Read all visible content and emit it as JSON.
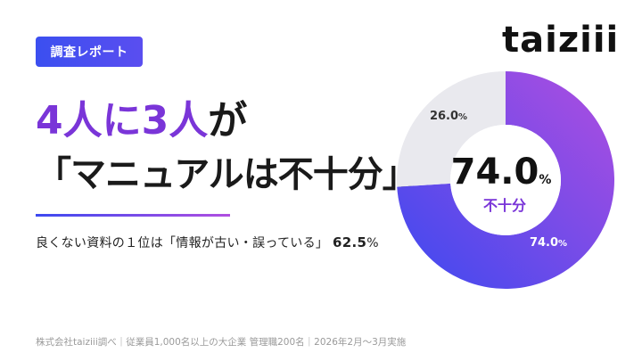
{
  "badge": "調査レポート",
  "logo": "taiziii",
  "headline": {
    "line1_num1": "4",
    "line1_word1": "人に",
    "line1_num2": "3",
    "line1_word2": "人",
    "line1_particle": "が",
    "line2": "「マニュアルは不十分」。"
  },
  "subline": {
    "text": "良くない資料の１位は「情報が古い・誤っている」",
    "value": "62.5",
    "unit": "%"
  },
  "footer": "株式会社taiziii調べ｜従業員1,000名以上の大企業 管理職200名｜2026年2月〜3月実施",
  "colors": {
    "accent_purple": "#7a35d8",
    "gradient_start": "#3c49f0",
    "gradient_end": "#b04ee0",
    "remainder_gray": "#e9e9ee"
  },
  "chart_data": {
    "type": "pie",
    "variant": "donut",
    "series": [
      {
        "name": "不十分",
        "value": 74.0,
        "label": "74.0",
        "unit": "%"
      },
      {
        "value": 26.0,
        "label": "26.0",
        "unit": "%"
      }
    ],
    "center": {
      "value": "74.0",
      "unit": "%",
      "caption": "不十分"
    }
  }
}
